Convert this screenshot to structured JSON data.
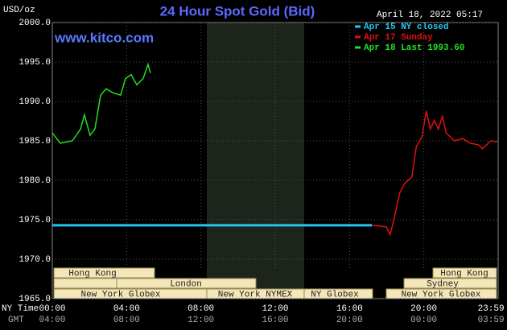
{
  "chart_data": {
    "type": "line",
    "title": "24 Hour Spot Gold (Bid)",
    "y_unit": "USD/oz",
    "watermark": "www.kitco.com",
    "timestamp": "April 18, 2022 05:17",
    "x_row_label": "NY Time",
    "x2_row_label": "GMT",
    "xlim": [
      0,
      24
    ],
    "ylim": [
      1965,
      2000
    ],
    "xticks": [
      {
        "value": 0,
        "label": "00:00"
      },
      {
        "value": 4,
        "label": "04:00"
      },
      {
        "value": 8,
        "label": "08:00"
      },
      {
        "value": 12,
        "label": "12:00"
      },
      {
        "value": 16,
        "label": "16:00"
      },
      {
        "value": 20,
        "label": "20:00"
      },
      {
        "value": 23.983,
        "label": "23:59"
      }
    ],
    "x2_labels": [
      "04:00",
      "08:00",
      "12:00",
      "16:00",
      "20:00",
      "00:00",
      "03:59"
    ],
    "yticks": [
      {
        "value": 1965,
        "label": "1965.0"
      },
      {
        "value": 1970,
        "label": "1970.0"
      },
      {
        "value": 1975,
        "label": "1975.0"
      },
      {
        "value": 1980,
        "label": "1980.0"
      },
      {
        "value": 1985,
        "label": "1985.0"
      },
      {
        "value": 1990,
        "label": "1990.0"
      },
      {
        "value": 1995,
        "label": "1995.0"
      },
      {
        "value": 2000,
        "label": "2000.0"
      }
    ],
    "grid": true,
    "series": [
      {
        "name": "Apr 15 NY closed",
        "color": "#22c8f0",
        "x": [
          0,
          17.2
        ],
        "values": [
          1974.3,
          1974.3
        ]
      },
      {
        "name": "Apr 17 Sunday",
        "color": "#e01010",
        "x": [
          17.2,
          17.97,
          18.18,
          18.4,
          18.7,
          18.96,
          19.35,
          19.6,
          19.9,
          20.13,
          20.35,
          20.56,
          20.78,
          21.0,
          21.2,
          21.65,
          22.08,
          22.5,
          22.94,
          23.16,
          23.6,
          23.94
        ],
        "values": [
          1974.3,
          1974.1,
          1973.1,
          1975.1,
          1978.4,
          1979.6,
          1980.4,
          1984.3,
          1985.5,
          1988.8,
          1986.5,
          1987.6,
          1986.5,
          1988.1,
          1986.0,
          1985.0,
          1985.3,
          1984.7,
          1984.5,
          1984.0,
          1985.0,
          1984.9
        ]
      },
      {
        "name": "Apr 18 Last 1993.60",
        "color": "#22e022",
        "x": [
          0,
          0.43,
          1.08,
          1.52,
          1.73,
          2.03,
          2.29,
          2.6,
          2.9,
          3.25,
          3.68,
          3.94,
          4.24,
          4.55,
          4.89,
          5.15,
          5.28
        ],
        "values": [
          1986.0,
          1984.7,
          1985.0,
          1986.5,
          1988.3,
          1985.7,
          1986.5,
          1990.8,
          1991.6,
          1991.1,
          1990.8,
          1992.9,
          1993.4,
          1992.1,
          1992.9,
          1994.7,
          1993.6
        ]
      }
    ],
    "sessions": [
      "Hong Kong",
      "London",
      "New York Globex",
      "New York NYMEX",
      "NY Globex",
      "Hong Kong",
      "Sydney",
      "New York Globex"
    ]
  }
}
